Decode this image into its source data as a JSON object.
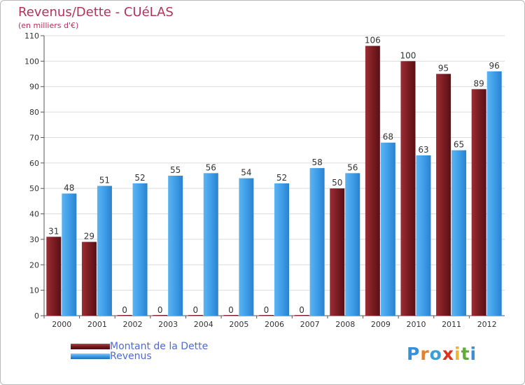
{
  "header": {
    "title": "Revenus/Dette - CUéLAS",
    "subtitle": "(en milliers d'€)"
  },
  "legend": {
    "debt_label": "Montant de la Dette",
    "revenue_label": "Revenus"
  },
  "brand": {
    "letters": [
      "P",
      "r",
      "o",
      "x",
      "i",
      "t",
      "i"
    ],
    "colors": [
      "#3a8fd9",
      "#e7802a",
      "#3aa0d8",
      "#e2301f",
      "#f0b62b",
      "#5fae3b",
      "#3a8fd9"
    ]
  },
  "colors": {
    "debt": "#7a1d22",
    "revenue": "#3f9ee8",
    "title": "#b5325a",
    "legend_text": "#4f6ad9",
    "grid": "#dcdcdc"
  },
  "chart_data": {
    "type": "bar",
    "categories": [
      "2000",
      "2001",
      "2002",
      "2003",
      "2004",
      "2005",
      "2006",
      "2007",
      "2008",
      "2009",
      "2010",
      "2011",
      "2012"
    ],
    "series": [
      {
        "name": "Montant de la Dette",
        "values": [
          31,
          29,
          0,
          0,
          0,
          0,
          0,
          0,
          50,
          106,
          100,
          95,
          89
        ]
      },
      {
        "name": "Revenus",
        "values": [
          48,
          51,
          52,
          55,
          56,
          54,
          52,
          58,
          56,
          68,
          63,
          65,
          96
        ]
      }
    ],
    "yticks": [
      0,
      10,
      20,
      30,
      40,
      50,
      60,
      70,
      80,
      90,
      100,
      110
    ],
    "ylim": [
      0,
      110
    ],
    "grid": true,
    "legend_position": "bottom-left"
  }
}
